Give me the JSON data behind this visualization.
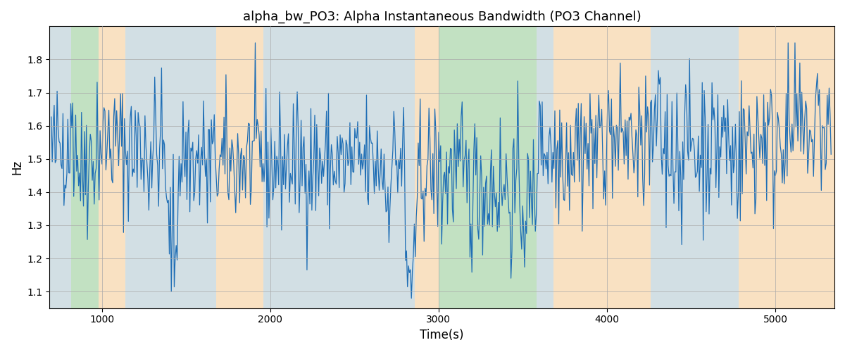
{
  "title": "alpha_bw_PO3: Alpha Instantaneous Bandwidth (PO3 Channel)",
  "xlabel": "Time(s)",
  "ylabel": "Hz",
  "xlim": [
    690,
    5350
  ],
  "ylim": [
    1.05,
    1.9
  ],
  "yticks": [
    1.1,
    1.2,
    1.3,
    1.4,
    1.5,
    1.6,
    1.7,
    1.8
  ],
  "line_color": "#1f6eb5",
  "line_width": 0.9,
  "background_color": "#ffffff",
  "grid_color": "#aaaaaa",
  "regions": [
    {
      "xstart": 690,
      "xend": 820,
      "color": "#aec6cf",
      "alpha": 0.55
    },
    {
      "xstart": 820,
      "xend": 980,
      "color": "#90c990",
      "alpha": 0.55
    },
    {
      "xstart": 980,
      "xend": 1140,
      "color": "#f5c990",
      "alpha": 0.55
    },
    {
      "xstart": 1140,
      "xend": 1680,
      "color": "#aec6cf",
      "alpha": 0.55
    },
    {
      "xstart": 1680,
      "xend": 1960,
      "color": "#f5c990",
      "alpha": 0.55
    },
    {
      "xstart": 1960,
      "xend": 2860,
      "color": "#aec6cf",
      "alpha": 0.55
    },
    {
      "xstart": 2860,
      "xend": 3000,
      "color": "#f5c990",
      "alpha": 0.55
    },
    {
      "xstart": 3000,
      "xend": 3580,
      "color": "#90c990",
      "alpha": 0.55
    },
    {
      "xstart": 3580,
      "xend": 3680,
      "color": "#aec6cf",
      "alpha": 0.55
    },
    {
      "xstart": 3680,
      "xend": 4260,
      "color": "#f5c990",
      "alpha": 0.55
    },
    {
      "xstart": 4260,
      "xend": 4780,
      "color": "#aec6cf",
      "alpha": 0.55
    },
    {
      "xstart": 4780,
      "xend": 5350,
      "color": "#f5c990",
      "alpha": 0.55
    }
  ],
  "seed": 42,
  "n_points": 800,
  "x_start": 700,
  "x_end": 5330
}
